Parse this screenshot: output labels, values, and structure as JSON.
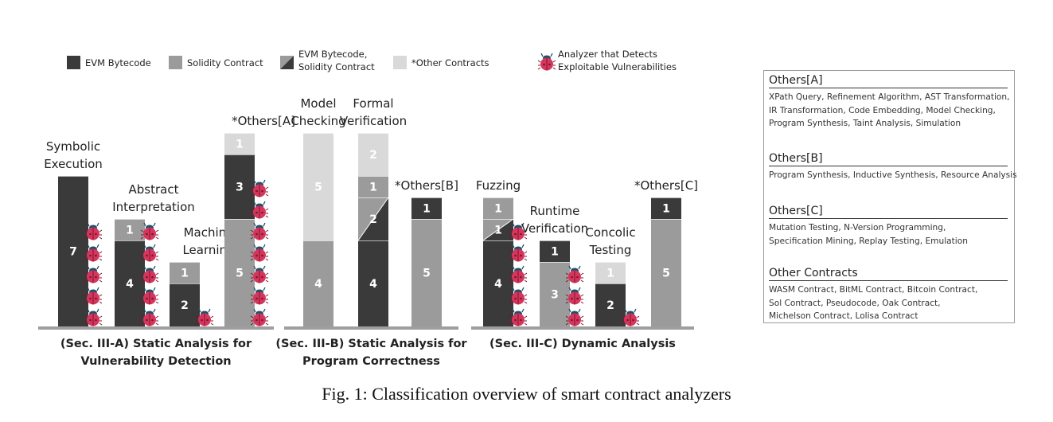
{
  "legend": [
    {
      "label": "EVM Bytecode",
      "color": "#3a3a3a",
      "pattern": "solid"
    },
    {
      "label": "Solidity Contract",
      "color": "#9b9b9b",
      "pattern": "solid"
    },
    {
      "label": [
        "EVM Bytecode,",
        "Solidity Contract"
      ],
      "pattern": "split"
    },
    {
      "label": "*Other Contracts",
      "color": "#d9d9d9",
      "pattern": "solid"
    },
    {
      "label": [
        "Analyzer that Detects",
        "Exploitable Vulnerabilities"
      ],
      "icon": "bug-icon"
    }
  ],
  "chart_data": {
    "type": "bar",
    "stacked": true,
    "colors": {
      "evm": "#3a3a3a",
      "solidity": "#9b9b9b",
      "both": "split",
      "other": "#d9d9d9"
    },
    "groups": [
      {
        "title": [
          "(Sec. III-A) Static Analysis for",
          "Vulnerability Detection"
        ],
        "bars": [
          {
            "label": [
              "Symbolic",
              "Execution"
            ],
            "segments": [
              {
                "type": "evm",
                "value": 7
              }
            ],
            "bugs": 5
          },
          {
            "label": [
              "Abstract",
              "Interpretation"
            ],
            "segments": [
              {
                "type": "evm",
                "value": 4
              },
              {
                "type": "solidity",
                "value": 1
              }
            ],
            "bugs": 5
          },
          {
            "label": [
              "Machine",
              "Learning"
            ],
            "segments": [
              {
                "type": "evm",
                "value": 2
              },
              {
                "type": "solidity",
                "value": 1
              }
            ],
            "bugs": 1
          },
          {
            "label": [
              "*Others[A]"
            ],
            "segments": [
              {
                "type": "solidity",
                "value": 5
              },
              {
                "type": "evm",
                "value": 3
              },
              {
                "type": "other",
                "value": 1
              }
            ],
            "bugs": 7
          }
        ]
      },
      {
        "title": [
          "(Sec. III-B) Static Analysis for",
          "Program Correctness"
        ],
        "bars": [
          {
            "label": [
              "Model",
              "Checking"
            ],
            "segments": [
              {
                "type": "solidity",
                "value": 4
              },
              {
                "type": "other",
                "value": 5
              }
            ],
            "bugs": 0
          },
          {
            "label": [
              "Formal",
              "Verification"
            ],
            "segments": [
              {
                "type": "evm",
                "value": 4
              },
              {
                "type": "both",
                "value": 2
              },
              {
                "type": "solidity",
                "value": 1
              },
              {
                "type": "other",
                "value": 2
              }
            ],
            "bugs": 0
          },
          {
            "label": [
              "*Others[B]"
            ],
            "segments": [
              {
                "type": "solidity",
                "value": 5
              },
              {
                "type": "evm",
                "value": 1
              }
            ],
            "bugs": 0
          }
        ]
      },
      {
        "title": [
          "(Sec. III-C) Dynamic Analysis"
        ],
        "bars": [
          {
            "label": [
              "Fuzzing"
            ],
            "segments": [
              {
                "type": "evm",
                "value": 4
              },
              {
                "type": "both",
                "value": 1
              },
              {
                "type": "solidity",
                "value": 1
              }
            ],
            "bugs": 5
          },
          {
            "label": [
              "Runtime",
              "Verification"
            ],
            "segments": [
              {
                "type": "solidity",
                "value": 3
              },
              {
                "type": "evm",
                "value": 1
              }
            ],
            "bugs": 3
          },
          {
            "label": [
              "Concolic",
              "Testing"
            ],
            "segments": [
              {
                "type": "evm",
                "value": 2
              },
              {
                "type": "other",
                "value": 1
              }
            ],
            "bugs": 1
          },
          {
            "label": [
              "*Others[C]"
            ],
            "segments": [
              {
                "type": "solidity",
                "value": 5
              },
              {
                "type": "evm",
                "value": 1
              }
            ],
            "bugs": 0
          }
        ]
      }
    ]
  },
  "side_panel": [
    {
      "title": "Others[A]",
      "lines": [
        "XPath Query, Refinement Algorithm, AST Transformation,",
        "IR Transformation, Code Embedding, Model Checking,",
        "Program Synthesis, Taint Analysis, Simulation"
      ]
    },
    {
      "title": "Others[B]",
      "lines": [
        "Program Synthesis, Inductive Synthesis, Resource Analysis"
      ]
    },
    {
      "title": "Others[C]",
      "lines": [
        "Mutation Testing, N-Version Programming,",
        "Specification Mining, Replay Testing, Emulation"
      ]
    },
    {
      "title": "Other Contracts",
      "lines": [
        "WASM Contract, BitML Contract, Bitcoin Contract,",
        "Sol Contract, Pseudocode, Oak Contract,",
        "Michelson Contract, Lolisa Contract"
      ]
    }
  ],
  "caption": "Fig. 1: Classification overview of smart contract analyzers"
}
